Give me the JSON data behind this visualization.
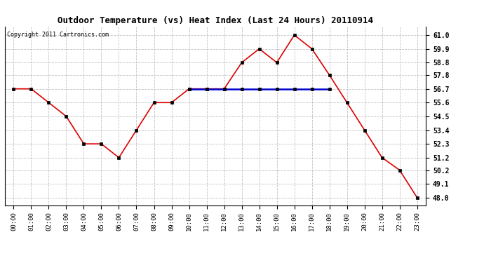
{
  "title": "Outdoor Temperature (vs) Heat Index (Last 24 Hours) 20110914",
  "copyright": "Copyright 2011 Cartronics.com",
  "hours": [
    "00:00",
    "01:00",
    "02:00",
    "03:00",
    "04:00",
    "05:00",
    "06:00",
    "07:00",
    "08:00",
    "09:00",
    "10:00",
    "11:00",
    "12:00",
    "13:00",
    "14:00",
    "15:00",
    "16:00",
    "17:00",
    "18:00",
    "19:00",
    "20:00",
    "21:00",
    "22:00",
    "23:00"
  ],
  "temp": [
    56.7,
    56.7,
    55.6,
    54.5,
    52.3,
    52.3,
    51.2,
    53.4,
    55.6,
    55.6,
    56.7,
    56.7,
    56.7,
    58.8,
    59.9,
    58.8,
    61.0,
    59.9,
    57.8,
    55.6,
    53.4,
    51.2,
    50.2,
    48.0
  ],
  "heat_index": [
    null,
    null,
    null,
    null,
    null,
    null,
    null,
    null,
    null,
    null,
    56.7,
    56.7,
    56.7,
    56.7,
    56.7,
    56.7,
    56.7,
    56.7,
    56.7,
    null,
    null,
    null,
    null,
    null
  ],
  "ylim_min": 47.4,
  "ylim_max": 61.7,
  "yticks": [
    48.0,
    49.1,
    50.2,
    51.2,
    52.3,
    53.4,
    54.5,
    55.6,
    56.7,
    57.8,
    58.8,
    59.9,
    61.0
  ],
  "temp_color": "#dd0000",
  "heat_color": "#0000cc",
  "marker": "s",
  "marker_size": 3,
  "bg_color": "#ffffff",
  "grid_color": "#bbbbbb",
  "title_fontsize": 9,
  "copyright_fontsize": 6,
  "tick_fontsize": 6.5,
  "ytick_fontsize": 7
}
